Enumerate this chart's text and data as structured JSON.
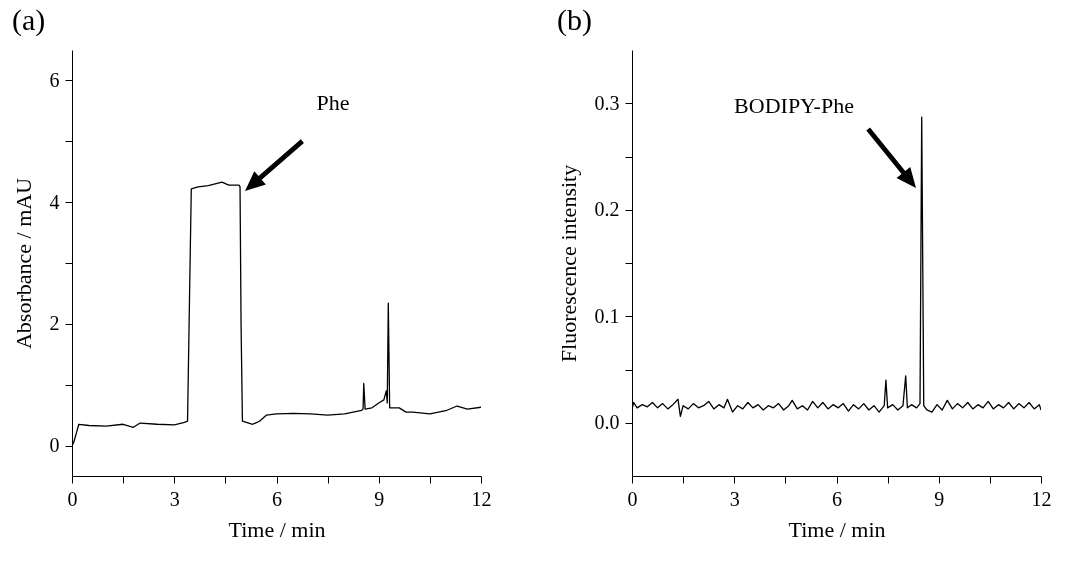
{
  "chart_data": [
    {
      "type": "line",
      "title": "(a)",
      "xlabel": "Time / min",
      "ylabel": "Absorbance / mAU",
      "xlim": [
        0,
        12
      ],
      "xticks": [
        0,
        {
          "value": 1.5,
          "label": null
        },
        3,
        {
          "value": 4.5,
          "label": null
        },
        6,
        {
          "value": 7.5,
          "label": null
        },
        9,
        {
          "value": 10.5,
          "label": null
        },
        12
      ],
      "ylim": [
        -0.5,
        6.5
      ],
      "yticks": [
        0,
        {
          "value": 1,
          "label": null
        },
        2,
        {
          "value": 3,
          "label": null
        },
        4,
        {
          "value": 5,
          "label": null
        },
        6
      ],
      "x": [
        0,
        0.05,
        0.15,
        0.2,
        0.5,
        1.0,
        1.5,
        1.8,
        2.0,
        2.5,
        3.0,
        3.3,
        3.39,
        3.45,
        3.5,
        3.7,
        4.0,
        4.4,
        4.6,
        4.9,
        4.93,
        4.96,
        5.0,
        5.3,
        5.5,
        5.7,
        6.0,
        6.5,
        7.0,
        7.5,
        8.0,
        8.5,
        8.54,
        8.56,
        8.6,
        8.8,
        9.0,
        9.15,
        9.22,
        9.25,
        9.28,
        9.32,
        9.6,
        9.8,
        10.0,
        10.5,
        11.0,
        11.3,
        11.6,
        12.0
      ],
      "series": [
        {
          "color": "#000000",
          "values": [
            0.0,
            0.05,
            0.25,
            0.35,
            0.33,
            0.32,
            0.35,
            0.3,
            0.37,
            0.35,
            0.34,
            0.38,
            0.4,
            2.5,
            4.22,
            4.25,
            4.27,
            4.33,
            4.28,
            4.28,
            4.25,
            2.0,
            0.4,
            0.35,
            0.4,
            0.5,
            0.52,
            0.53,
            0.52,
            0.5,
            0.52,
            0.58,
            0.6,
            1.02,
            0.6,
            0.62,
            0.7,
            0.75,
            0.9,
            0.7,
            2.34,
            0.62,
            0.62,
            0.55,
            0.55,
            0.52,
            0.58,
            0.65,
            0.6,
            0.63
          ]
        }
      ],
      "annotations": [
        "Phe"
      ]
    },
    {
      "type": "line",
      "title": "(b)",
      "xlabel": "Time / min",
      "ylabel": "Fluorescence intensity",
      "xlim": [
        0,
        12
      ],
      "xticks": [
        0,
        {
          "value": 1.5,
          "label": null
        },
        3,
        {
          "value": 4.5,
          "label": null
        },
        6,
        {
          "value": 7.5,
          "label": null
        },
        9,
        {
          "value": 10.5,
          "label": null
        },
        12
      ],
      "ylim": [
        -0.05,
        0.35
      ],
      "yticks": [
        {
          "value": 0,
          "label": "0.0"
        },
        {
          "value": 0.05,
          "label": null
        },
        0.1,
        {
          "value": 0.15,
          "label": null
        },
        0.2,
        {
          "value": 0.25,
          "label": null
        },
        0.3
      ],
      "x": [
        0,
        0.05,
        0.15,
        0.3,
        0.45,
        0.6,
        0.75,
        0.9,
        1.05,
        1.2,
        1.35,
        1.42,
        1.5,
        1.65,
        1.8,
        1.95,
        2.1,
        2.25,
        2.4,
        2.55,
        2.7,
        2.8,
        2.95,
        3.1,
        3.25,
        3.4,
        3.55,
        3.7,
        3.85,
        4.0,
        4.15,
        4.3,
        4.45,
        4.6,
        4.7,
        4.85,
        5.0,
        5.15,
        5.3,
        5.45,
        5.6,
        5.75,
        5.9,
        6.05,
        6.2,
        6.35,
        6.5,
        6.65,
        6.8,
        6.95,
        7.1,
        7.25,
        7.4,
        7.45,
        7.5,
        7.65,
        7.8,
        7.95,
        8.03,
        8.08,
        8.2,
        8.35,
        8.45,
        8.5,
        8.56,
        8.65,
        8.8,
        8.95,
        9.1,
        9.25,
        9.4,
        9.55,
        9.7,
        9.85,
        10.0,
        10.15,
        10.3,
        10.45,
        10.6,
        10.75,
        10.9,
        11.05,
        11.2,
        11.35,
        11.5,
        11.65,
        11.8,
        11.95,
        12.0
      ],
      "series": [
        {
          "color": "#000000",
          "values": [
            0.013,
            0.019,
            0.014,
            0.017,
            0.015,
            0.019,
            0.014,
            0.018,
            0.013,
            0.017,
            0.022,
            0.006,
            0.016,
            0.013,
            0.018,
            0.014,
            0.016,
            0.02,
            0.013,
            0.017,
            0.014,
            0.022,
            0.01,
            0.016,
            0.013,
            0.019,
            0.014,
            0.017,
            0.012,
            0.016,
            0.014,
            0.018,
            0.012,
            0.016,
            0.021,
            0.013,
            0.016,
            0.012,
            0.02,
            0.014,
            0.019,
            0.013,
            0.017,
            0.014,
            0.018,
            0.011,
            0.017,
            0.013,
            0.018,
            0.012,
            0.016,
            0.01,
            0.016,
            0.04,
            0.014,
            0.017,
            0.012,
            0.016,
            0.044,
            0.014,
            0.017,
            0.014,
            0.018,
            0.287,
            0.016,
            0.012,
            0.01,
            0.017,
            0.012,
            0.021,
            0.013,
            0.018,
            0.014,
            0.019,
            0.013,
            0.017,
            0.014,
            0.02,
            0.013,
            0.017,
            0.014,
            0.019,
            0.013,
            0.018,
            0.014,
            0.019,
            0.013,
            0.017,
            0.012
          ]
        }
      ],
      "annotations": [
        "BODIPY-Phe"
      ]
    }
  ]
}
